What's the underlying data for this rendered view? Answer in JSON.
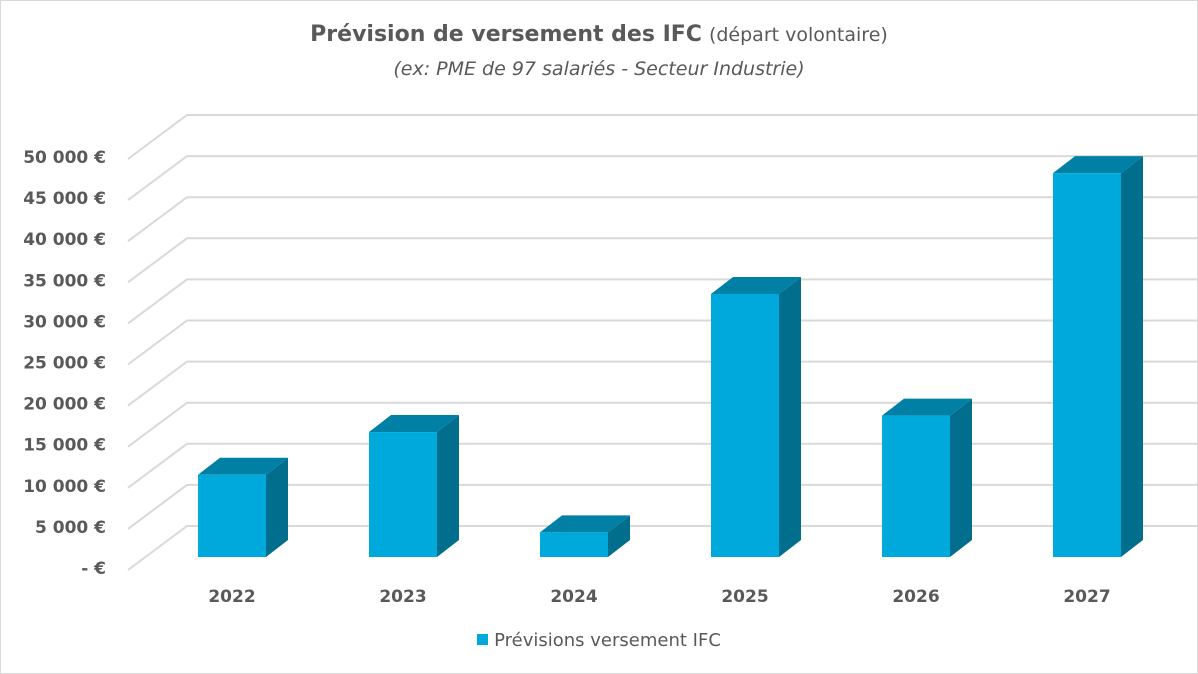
{
  "chart_data": {
    "type": "bar",
    "title": "Prévision de versement des IFC",
    "title_suffix": "(départ volontaire)",
    "subtitle": "(ex: PME de 97 salariés - Secteur Industrie)",
    "categories": [
      "2022",
      "2023",
      "2024",
      "2025",
      "2026",
      "2027"
    ],
    "series": [
      {
        "name": "Prévisions versement IFC",
        "values": [
          10000,
          15200,
          3000,
          32000,
          17200,
          46700
        ]
      }
    ],
    "ylim": [
      0,
      50000
    ],
    "yticks": [
      0,
      5000,
      10000,
      15000,
      20000,
      25000,
      30000,
      35000,
      40000,
      45000,
      50000
    ],
    "ytick_labels": [
      "-   €",
      "5 000 €",
      "10 000 €",
      "15 000 €",
      "20 000 €",
      "25 000 €",
      "30 000 €",
      "35 000 €",
      "40 000 €",
      "45 000 €",
      "50 000 €"
    ],
    "xlabel": "",
    "ylabel": "",
    "grid": true,
    "legend_position": "bottom",
    "colors": {
      "front": "#00A9DB",
      "top": "#0080A5",
      "side": "#006E8C",
      "grid": "#d9d9d9",
      "text": "#595959"
    }
  }
}
